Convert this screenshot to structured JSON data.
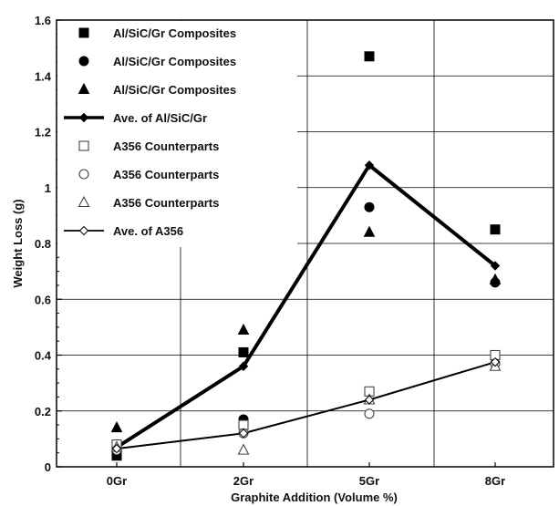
{
  "chart_data": {
    "type": "line",
    "title": "",
    "xlabel": "Graphite Addition (Volume %)",
    "ylabel": "Weight Loss (g)",
    "categories": [
      "0Gr",
      "2Gr",
      "5Gr",
      "8Gr"
    ],
    "ylim": [
      0,
      1.6
    ],
    "yticks": [
      "0",
      "0.2",
      "0.4",
      "0.6",
      "0.8",
      "1",
      "1.2",
      "1.4",
      "1.6"
    ],
    "grid": true,
    "legend_position": "top-left",
    "series": [
      {
        "name": "Al/SiC/Gr Composites",
        "marker": "square-filled",
        "values": [
          0.04,
          0.41,
          1.47,
          0.85
        ]
      },
      {
        "name": "Al/SiC/Gr Composites",
        "marker": "circle-filled",
        "values": [
          0.05,
          0.17,
          0.93,
          0.66
        ]
      },
      {
        "name": "Al/SiC/Gr Composites",
        "marker": "triangle-filled",
        "values": [
          0.14,
          0.49,
          0.84,
          0.67
        ]
      },
      {
        "name": "Ave. of Al/SiC/Gr",
        "marker": "diamond-filled",
        "line": "thick",
        "values": [
          0.07,
          0.36,
          1.08,
          0.72
        ]
      },
      {
        "name": "A356 Counterparts",
        "marker": "square-open",
        "values": [
          0.08,
          0.15,
          0.27,
          0.4
        ]
      },
      {
        "name": "A356 Counterparts",
        "marker": "circle-open",
        "values": [
          0.06,
          0.12,
          0.19,
          0.37
        ]
      },
      {
        "name": "A356 Counterparts",
        "marker": "triangle-open",
        "values": [
          0.07,
          0.06,
          0.24,
          0.36
        ]
      },
      {
        "name": "Ave. of A356",
        "marker": "diamond-open",
        "line": "thin",
        "values": [
          0.065,
          0.12,
          0.24,
          0.375
        ]
      }
    ]
  }
}
